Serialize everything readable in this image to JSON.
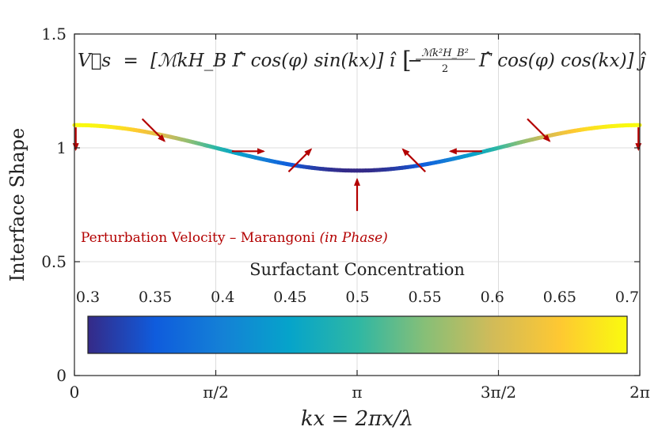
{
  "chart_data": {
    "type": "line",
    "xlabel": "kx = 2πx/λ",
    "ylabel": "Interface Shape",
    "xlim": [
      0,
      6.2832
    ],
    "ylim": [
      0,
      1.5
    ],
    "xticks": [
      {
        "value": 0,
        "label": "0"
      },
      {
        "value": 1.5708,
        "label": "π/2"
      },
      {
        "value": 3.1416,
        "label": "π"
      },
      {
        "value": 4.7124,
        "label": "3π/2"
      },
      {
        "value": 6.2832,
        "label": "2π"
      }
    ],
    "yticks": [
      {
        "value": 0,
        "label": "0"
      },
      {
        "value": 0.5,
        "label": "0.5"
      },
      {
        "value": 1,
        "label": "1"
      },
      {
        "value": 1.5,
        "label": "1.5"
      }
    ],
    "grid": true,
    "equation": {
      "lhs": "V⃗s",
      "eq": "=",
      "term1": "[ℳkH_B Γ̂ cos(φ) sin(kx)] î",
      "minus": "−",
      "term2_frac_num": "ℳk²H_B²",
      "term2_frac_den": "2",
      "term2_rest": "Γ̂ cos(φ) cos(kx)] ĵ"
    },
    "interface": {
      "function": "y = 1 + 0.1·cos(kx)",
      "x": [
        0,
        0.3142,
        0.6283,
        0.9425,
        1.2566,
        1.5708,
        1.885,
        2.1991,
        2.5133,
        2.8274,
        3.1416,
        3.4558,
        3.7699,
        4.0841,
        4.3982,
        4.7124,
        5.0265,
        5.3407,
        5.6549,
        5.969,
        6.2832
      ],
      "y": [
        1.1,
        1.0951,
        1.0809,
        1.0588,
        1.0309,
        1.0,
        0.9691,
        0.9412,
        0.9191,
        0.9049,
        0.9,
        0.9049,
        0.9191,
        0.9412,
        0.9691,
        1.0,
        1.0309,
        1.0588,
        1.0809,
        1.0951,
        1.1
      ],
      "concentration": [
        0.7,
        0.69,
        0.662,
        0.618,
        0.562,
        0.5,
        0.438,
        0.382,
        0.338,
        0.31,
        0.3,
        0.31,
        0.338,
        0.382,
        0.438,
        0.5,
        0.562,
        0.618,
        0.662,
        0.69,
        0.7
      ]
    },
    "velocity_arrows": {
      "color": "#b30000",
      "label_main": "Perturbation Velocity – Marangoni ",
      "label_italic": "(in Phase)",
      "arrows": [
        {
          "x": 0.0393,
          "y": 1.1,
          "dx": 0,
          "dy": -1
        },
        {
          "x": 0.0393,
          "y": 1.1,
          "dx": 0,
          "dy": -1
        },
        {
          "x": 0.785,
          "y": 1.0,
          "dx": 0.707,
          "dy": -0.707
        },
        {
          "x": 1.5708,
          "y": 0.965,
          "dx": 1,
          "dy": 0
        },
        {
          "x": 2.356,
          "y": 0.858,
          "dx": 0.707,
          "dy": 0.707
        },
        {
          "x": 3.1416,
          "y": 0.79,
          "dx": 0,
          "dy": 1
        },
        {
          "x": 3.927,
          "y": 0.858,
          "dx": -0.707,
          "dy": 0.707
        },
        {
          "x": 4.7124,
          "y": 0.965,
          "dx": -1,
          "dy": 0
        },
        {
          "x": 5.498,
          "y": 1.0,
          "dx": -0.707,
          "dy": -0.707
        },
        {
          "x": 6.2439,
          "y": 1.1,
          "dx": 0,
          "dy": -1
        }
      ]
    },
    "colorbar": {
      "title": "Surfactant Concentration",
      "min": 0.3,
      "max": 0.7,
      "ticks": [
        "0.3",
        "0.35",
        "0.4",
        "0.45",
        "0.5",
        "0.55",
        "0.6",
        "0.65",
        "0.7"
      ],
      "colormap": "parula",
      "stops": [
        "#352a87",
        "#0f5cdd",
        "#1481d6",
        "#06a4ca",
        "#2eb7a4",
        "#87bf77",
        "#d1bb59",
        "#fec832",
        "#f9fb0e"
      ]
    }
  }
}
